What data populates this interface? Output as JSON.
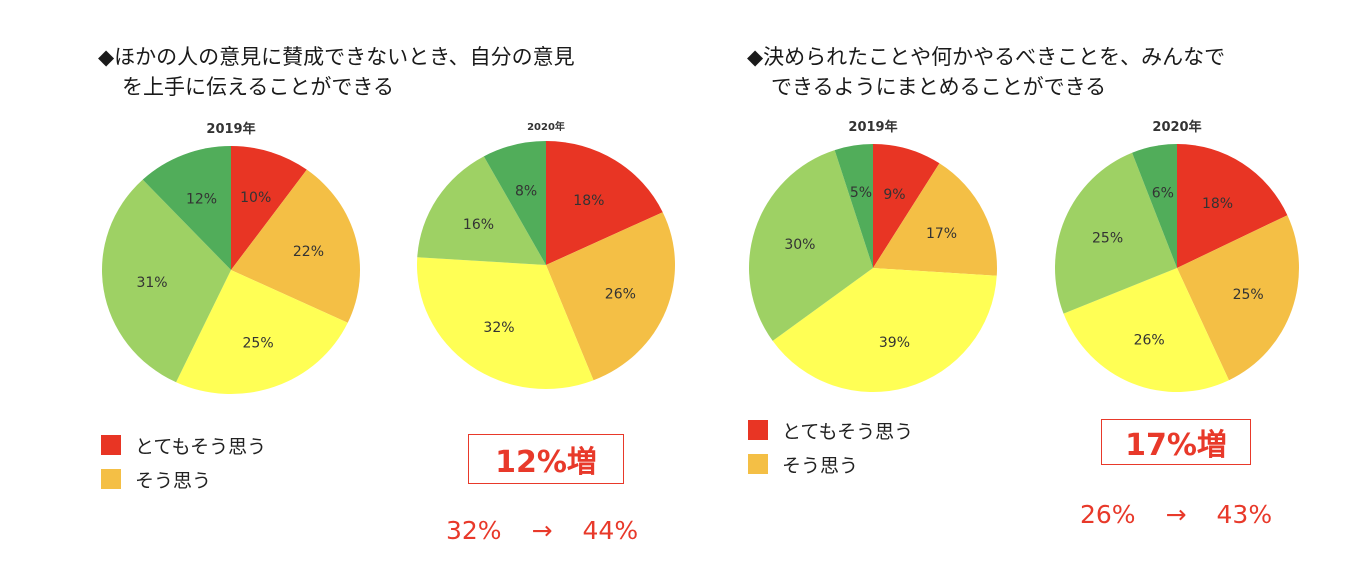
{
  "colors": {
    "strongly_agree": "#e83524",
    "agree": "#f4bf45",
    "neutral": "#ffff55",
    "disagree": "#9ed164",
    "strongly_disagree": "#51ad5a",
    "highlight": "#e8392a"
  },
  "panels": [
    {
      "question_lines": [
        "◆ほかの人の意見に賛成できないとき、自分の意見",
        "を上手に伝えることができる"
      ],
      "legend": [
        {
          "label": "とてもそう思う",
          "color": "#e83524"
        },
        {
          "label": "そう思う",
          "color": "#f4bf45"
        }
      ],
      "increase_label": "12%増",
      "change": {
        "from": "32%",
        "arrow": "→",
        "to": "44%"
      }
    },
    {
      "question_lines": [
        "◆決められたことや何かやるべきことを、みんなで",
        "できるようにまとめることができる"
      ],
      "legend": [
        {
          "label": "とてもそう思う",
          "color": "#e83524"
        },
        {
          "label": "そう思う",
          "color": "#f4bf45"
        }
      ],
      "increase_label": "17%増",
      "change": {
        "from": "26%",
        "arrow": "→",
        "to": "43%"
      }
    }
  ],
  "chart_data": [
    {
      "type": "pie",
      "title": "2019年",
      "slices": [
        {
          "value": 10,
          "label": "10%",
          "color": "#e83524"
        },
        {
          "value": 22,
          "label": "22%",
          "color": "#f4bf45"
        },
        {
          "value": 25,
          "label": "25%",
          "color": "#ffff55"
        },
        {
          "value": 31,
          "label": "31%",
          "color": "#9ed164"
        },
        {
          "value": 12,
          "label": "12%",
          "color": "#51ad5a"
        }
      ]
    },
    {
      "type": "pie",
      "title": "2020年",
      "slices": [
        {
          "value": 18,
          "label": "18%",
          "color": "#e83524"
        },
        {
          "value": 26,
          "label": "26%",
          "color": "#f4bf45"
        },
        {
          "value": 32,
          "label": "32%",
          "color": "#ffff55"
        },
        {
          "value": 16,
          "label": "16%",
          "color": "#9ed164"
        },
        {
          "value": 8,
          "label": "8%",
          "color": "#51ad5a"
        }
      ]
    },
    {
      "type": "pie",
      "title": "2019年",
      "slices": [
        {
          "value": 9,
          "label": "9%",
          "color": "#e83524"
        },
        {
          "value": 17,
          "label": "17%",
          "color": "#f4bf45"
        },
        {
          "value": 39,
          "label": "39%",
          "color": "#ffff55"
        },
        {
          "value": 30,
          "label": "30%",
          "color": "#9ed164"
        },
        {
          "value": 5,
          "label": "5%",
          "color": "#51ad5a"
        }
      ]
    },
    {
      "type": "pie",
      "title": "2020年",
      "slices": [
        {
          "value": 18,
          "label": "18%",
          "color": "#e83524"
        },
        {
          "value": 25,
          "label": "25%",
          "color": "#f4bf45"
        },
        {
          "value": 26,
          "label": "26%",
          "color": "#ffff55"
        },
        {
          "value": 25,
          "label": "25%",
          "color": "#9ed164"
        },
        {
          "value": 6,
          "label": "6%",
          "color": "#51ad5a"
        }
      ]
    }
  ]
}
